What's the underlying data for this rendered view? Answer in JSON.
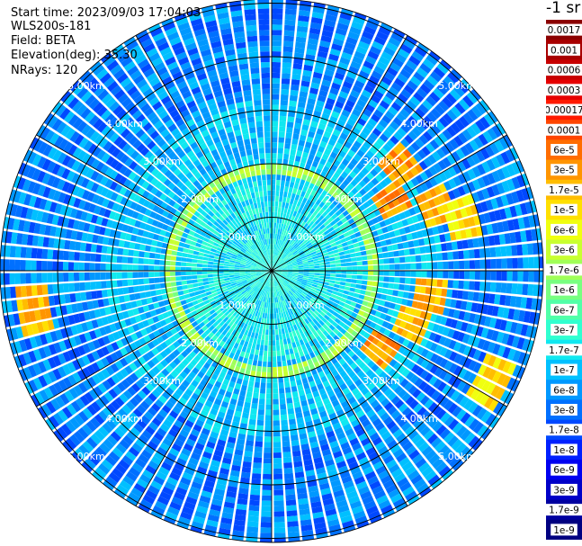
{
  "header": {
    "start_time": "Start time: 2023/09/03 17:04:03",
    "device": "WLS200s-181",
    "field": "Field: BETA",
    "elevation": "Elevation(deg): 35.30",
    "nrays": "NRays: 120"
  },
  "colorbar": {
    "unit_label": "-1 sr",
    "labels": [
      "0.0017",
      "0.001",
      "0.0006",
      "0.0003",
      "0.00017",
      "0.0001",
      "6e-5",
      "3e-5",
      "1.7e-5",
      "1e-5",
      "6e-6",
      "3e-6",
      "1.7e-6",
      "1e-6",
      "6e-7",
      "3e-7",
      "1.7e-7",
      "1e-7",
      "6e-8",
      "3e-8",
      "1.7e-8",
      "1e-8",
      "6e-9",
      "3e-9",
      "1.7e-9",
      "1e-9"
    ],
    "colors": [
      "#8b0000",
      "#a80000",
      "#c80000",
      "#e60000",
      "#ff1a00",
      "#ff4500",
      "#ff6d00",
      "#ff9500",
      "#ffbd00",
      "#ffe000",
      "#f0ff10",
      "#c8ff30",
      "#a0ff58",
      "#78ff80",
      "#50ffa8",
      "#30ffd0",
      "#10e8f0",
      "#00c0ff",
      "#0098ff",
      "#0070ff",
      "#0048ff",
      "#0020ff",
      "#0000f0",
      "#0000c8",
      "#0000a0",
      "#000080"
    ]
  },
  "range_rings": {
    "labels": [
      "1.00km",
      "2.00km",
      "3.00km",
      "4.00km",
      "5.00km"
    ]
  },
  "scan_data": {
    "rays": 120,
    "gates": 60,
    "max_range_km": 6,
    "features": {
      "aerosol_ring_km": 1.9,
      "aerosol_ring_value": "1.7e-6",
      "background_near": "1.7e-7",
      "background_far": "1e-7",
      "hotspots": [
        {
          "azimuth_deg": 52,
          "range_km": 3.1,
          "value": "3e-5"
        },
        {
          "azimuth_deg": 60,
          "range_km": 2.6,
          "value": "3e-5"
        },
        {
          "azimuth_deg": 68,
          "range_km": 3.3,
          "value": "1.7e-5"
        },
        {
          "azimuth_deg": 75,
          "range_km": 3.7,
          "value": "1e-5"
        },
        {
          "azimuth_deg": 98,
          "range_km": 3.0,
          "value": "1.7e-5"
        },
        {
          "azimuth_deg": 112,
          "range_km": 2.8,
          "value": "1.7e-5"
        },
        {
          "azimuth_deg": 125,
          "range_km": 2.5,
          "value": "3e-5"
        },
        {
          "azimuth_deg": 118,
          "range_km": 4.6,
          "value": "1e-5"
        },
        {
          "azimuth_deg": 260,
          "range_km": 4.5,
          "value": "1.7e-5"
        }
      ]
    }
  }
}
